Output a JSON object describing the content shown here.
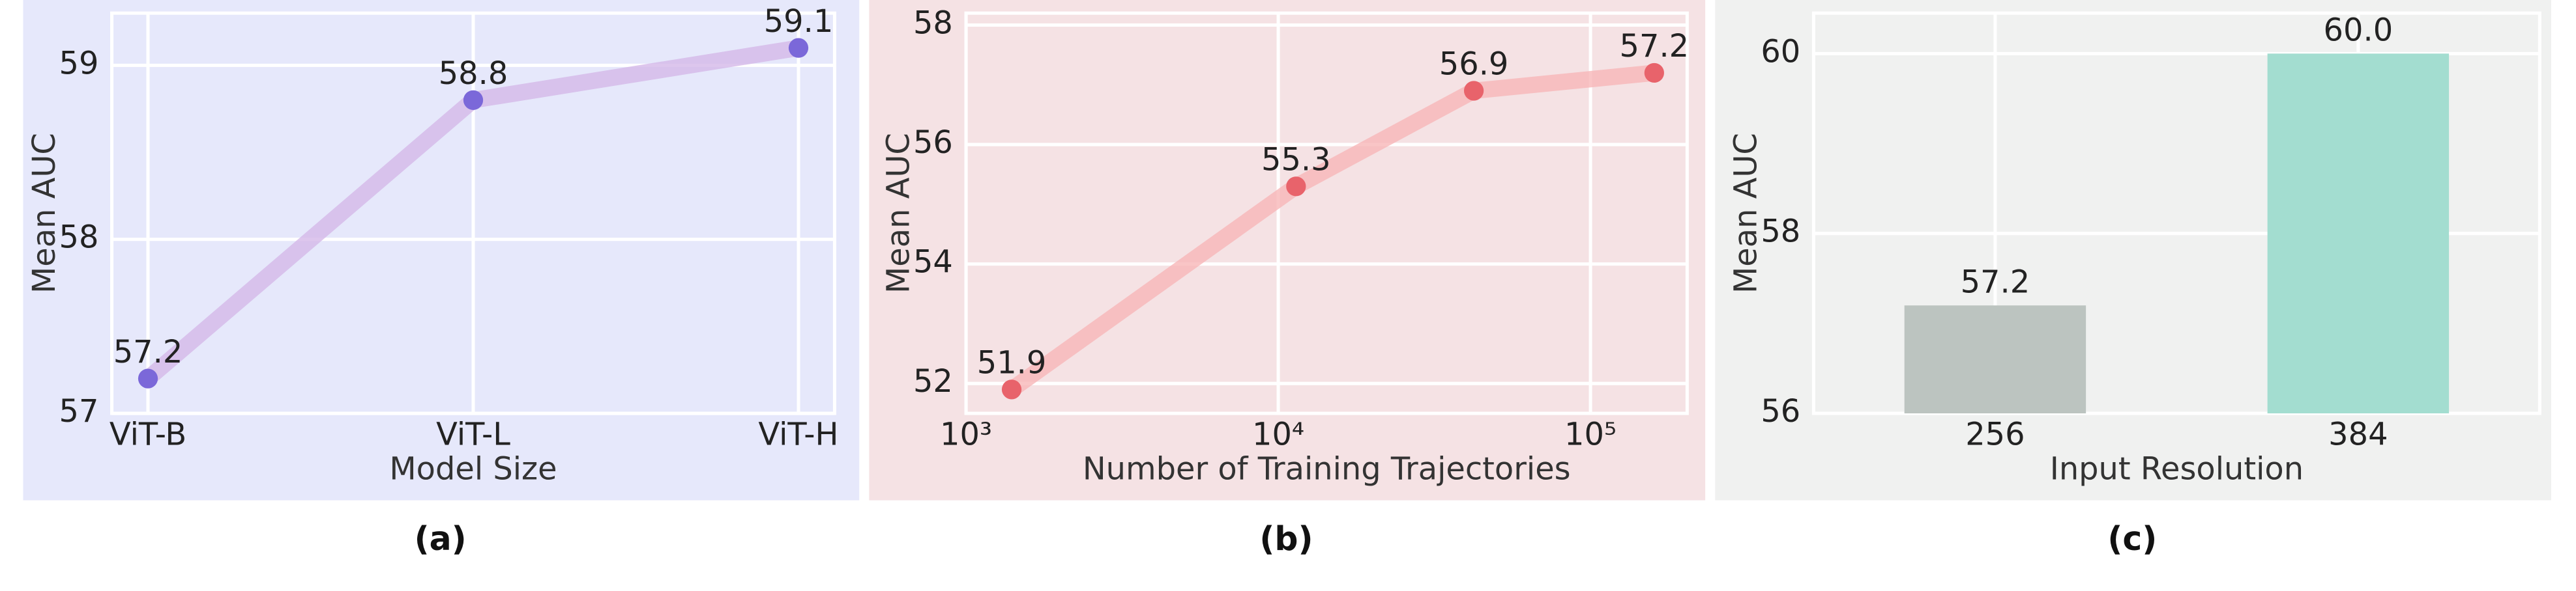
{
  "chart_data": [
    {
      "type": "line",
      "caption": "(a)",
      "xlabel": "Model Size",
      "ylabel": "Mean AUC",
      "categories": [
        "ViT-B",
        "ViT-L",
        "ViT-H"
      ],
      "values": [
        57.2,
        58.8,
        59.1
      ],
      "ylim": [
        57,
        59.3
      ],
      "yticks": [
        57,
        58,
        59
      ],
      "grid": true,
      "background": "#e6e8fb",
      "line_color": "#d4b8e8",
      "color": "#7b68d9"
    },
    {
      "type": "line",
      "caption": "(b)",
      "xlabel": "Number of Training Trajectories",
      "ylabel": "Mean AUC",
      "x": [
        1400,
        11400,
        42300,
        160000
      ],
      "values": [
        51.9,
        55.3,
        56.9,
        57.2
      ],
      "xscale": "log",
      "xlim": [
        1000,
        204000
      ],
      "xticks": [
        {
          "value": 1000,
          "label": "10³"
        },
        {
          "value": 10000,
          "label": "10⁴"
        },
        {
          "value": 100000,
          "label": "10⁵"
        }
      ],
      "ylim": [
        51.5,
        58.2
      ],
      "yticks": [
        52,
        54,
        56,
        58
      ],
      "grid": true,
      "background": "#f5e2e4",
      "line_color": "#f7b6b8",
      "color": "#e8636b"
    },
    {
      "type": "bar",
      "caption": "(c)",
      "xlabel": "Input Resolution",
      "ylabel": "Mean AUC",
      "categories": [
        "256",
        "384"
      ],
      "values": [
        57.2,
        60.0
      ],
      "value_labels": [
        "57.2",
        "60.0"
      ],
      "ylim": [
        56,
        60.45
      ],
      "yticks": [
        56,
        58,
        60
      ],
      "grid": true,
      "background": "#f0f1f0",
      "colors": [
        "#bcc4c0",
        "#a3ddd0"
      ]
    }
  ]
}
